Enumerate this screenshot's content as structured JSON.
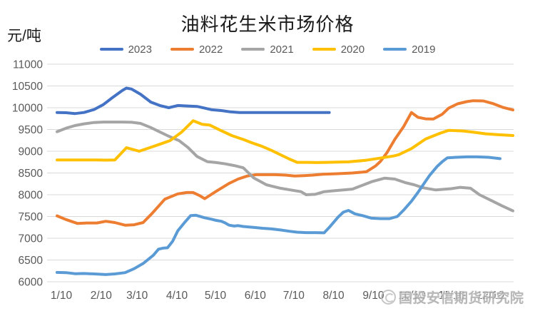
{
  "watermark": {
    "text": "国投安信期货研究院",
    "logo_icon": "circle-logo"
  },
  "colors": {
    "background": "#FFFFFF",
    "grid": "#D9D9D9",
    "axis_text": "#595959",
    "title_text": "#1A1A1A",
    "watermark_text": "#ABABAB",
    "series_2023": "#4472C4",
    "series_2022": "#ED7D31",
    "series_2021": "#A5A5A5",
    "series_2020": "#FFC000",
    "series_2019": "#5B9BD5"
  },
  "chart_data": {
    "type": "line",
    "title": "油料花生米市场价格",
    "ylabel": "元/吨",
    "xlabel": "",
    "ylim": [
      6000,
      11000
    ],
    "grid": "horizontal",
    "legend_position": "top",
    "y_ticks": [
      11000,
      10500,
      10000,
      9500,
      9000,
      8500,
      8000,
      7500,
      7000,
      6500,
      6000
    ],
    "x_tick_days": [
      10,
      41,
      69,
      100,
      130,
      161,
      191,
      222,
      253,
      283,
      314,
      344
    ],
    "x_tick_labels": [
      "1/10",
      "2/10",
      "3/10",
      "4/10",
      "5/10",
      "6/10",
      "7/10",
      "8/10",
      "9/10",
      "10/10",
      "11/10",
      "12/10"
    ],
    "x_unit": "date (month/day), plotted as day-of-year",
    "series": [
      {
        "name": "2023",
        "color": "#4472C4",
        "points": [
          [
            10,
            9890
          ],
          [
            17,
            9885
          ],
          [
            24,
            9865
          ],
          [
            31,
            9890
          ],
          [
            39,
            9960
          ],
          [
            46,
            10070
          ],
          [
            53,
            10230
          ],
          [
            61,
            10400
          ],
          [
            64,
            10450
          ],
          [
            68,
            10430
          ],
          [
            75,
            10310
          ],
          [
            83,
            10130
          ],
          [
            90,
            10050
          ],
          [
            97,
            10000
          ],
          [
            104,
            10050
          ],
          [
            112,
            10040
          ],
          [
            119,
            10030
          ],
          [
            125,
            9990
          ],
          [
            130,
            9955
          ],
          [
            138,
            9935
          ],
          [
            145,
            9905
          ],
          [
            152,
            9890
          ],
          [
            160,
            9890
          ],
          [
            170,
            9890
          ],
          [
            180,
            9890
          ],
          [
            190,
            9890
          ],
          [
            200,
            9890
          ],
          [
            210,
            9890
          ],
          [
            222,
            9890
          ]
        ]
      },
      {
        "name": "2022",
        "color": "#ED7D31",
        "points": [
          [
            10,
            7515
          ],
          [
            17,
            7430
          ],
          [
            26,
            7340
          ],
          [
            33,
            7350
          ],
          [
            41,
            7350
          ],
          [
            48,
            7390
          ],
          [
            55,
            7360
          ],
          [
            63,
            7300
          ],
          [
            70,
            7310
          ],
          [
            77,
            7360
          ],
          [
            84,
            7570
          ],
          [
            94,
            7900
          ],
          [
            104,
            8020
          ],
          [
            111,
            8050
          ],
          [
            116,
            8050
          ],
          [
            121,
            7980
          ],
          [
            125,
            7910
          ],
          [
            134,
            8080
          ],
          [
            144,
            8260
          ],
          [
            151,
            8360
          ],
          [
            158,
            8430
          ],
          [
            165,
            8460
          ],
          [
            173,
            8460
          ],
          [
            180,
            8460
          ],
          [
            188,
            8450
          ],
          [
            195,
            8430
          ],
          [
            202,
            8440
          ],
          [
            209,
            8450
          ],
          [
            217,
            8470
          ],
          [
            225,
            8480
          ],
          [
            233,
            8490
          ],
          [
            240,
            8500
          ],
          [
            248,
            8520
          ],
          [
            251,
            8530
          ],
          [
            258,
            8660
          ],
          [
            262,
            8770
          ],
          [
            267,
            8970
          ],
          [
            273,
            9270
          ],
          [
            280,
            9570
          ],
          [
            286,
            9890
          ],
          [
            291,
            9780
          ],
          [
            297,
            9745
          ],
          [
            303,
            9740
          ],
          [
            310,
            9850
          ],
          [
            315,
            9990
          ],
          [
            322,
            10090
          ],
          [
            329,
            10140
          ],
          [
            334,
            10160
          ],
          [
            342,
            10155
          ],
          [
            349,
            10100
          ],
          [
            357,
            10010
          ],
          [
            365,
            9950
          ]
        ]
      },
      {
        "name": "2021",
        "color": "#A5A5A5",
        "points": [
          [
            10,
            9450
          ],
          [
            17,
            9530
          ],
          [
            24,
            9590
          ],
          [
            31,
            9630
          ],
          [
            39,
            9660
          ],
          [
            46,
            9670
          ],
          [
            53,
            9670
          ],
          [
            61,
            9670
          ],
          [
            68,
            9665
          ],
          [
            75,
            9640
          ],
          [
            83,
            9545
          ],
          [
            90,
            9445
          ],
          [
            97,
            9345
          ],
          [
            105,
            9245
          ],
          [
            112,
            9085
          ],
          [
            119,
            8880
          ],
          [
            127,
            8760
          ],
          [
            134,
            8740
          ],
          [
            141,
            8710
          ],
          [
            148,
            8670
          ],
          [
            155,
            8620
          ],
          [
            163,
            8390
          ],
          [
            173,
            8230
          ],
          [
            184,
            8150
          ],
          [
            192,
            8110
          ],
          [
            200,
            8070
          ],
          [
            204,
            8000
          ],
          [
            211,
            8010
          ],
          [
            218,
            8070
          ],
          [
            225,
            8090
          ],
          [
            233,
            8110
          ],
          [
            240,
            8130
          ],
          [
            248,
            8220
          ],
          [
            255,
            8300
          ],
          [
            265,
            8380
          ],
          [
            273,
            8360
          ],
          [
            281,
            8280
          ],
          [
            288,
            8230
          ],
          [
            295,
            8160
          ],
          [
            305,
            8110
          ],
          [
            317,
            8140
          ],
          [
            324,
            8170
          ],
          [
            332,
            8150
          ],
          [
            339,
            8000
          ],
          [
            348,
            7870
          ],
          [
            357,
            7740
          ],
          [
            365,
            7630
          ]
        ]
      },
      {
        "name": "2020",
        "color": "#FFC000",
        "points": [
          [
            10,
            8800
          ],
          [
            20,
            8800
          ],
          [
            30,
            8800
          ],
          [
            41,
            8800
          ],
          [
            48,
            8795
          ],
          [
            55,
            8800
          ],
          [
            64,
            9080
          ],
          [
            74,
            9000
          ],
          [
            82,
            9080
          ],
          [
            90,
            9160
          ],
          [
            98,
            9245
          ],
          [
            107,
            9440
          ],
          [
            116,
            9700
          ],
          [
            123,
            9620
          ],
          [
            129,
            9600
          ],
          [
            138,
            9470
          ],
          [
            146,
            9360
          ],
          [
            155,
            9270
          ],
          [
            162,
            9190
          ],
          [
            169,
            9120
          ],
          [
            177,
            9020
          ],
          [
            184,
            8920
          ],
          [
            191,
            8820
          ],
          [
            197,
            8745
          ],
          [
            205,
            8745
          ],
          [
            212,
            8740
          ],
          [
            220,
            8745
          ],
          [
            228,
            8750
          ],
          [
            237,
            8755
          ],
          [
            250,
            8790
          ],
          [
            261,
            8840
          ],
          [
            272,
            8890
          ],
          [
            276,
            8920
          ],
          [
            286,
            9060
          ],
          [
            297,
            9280
          ],
          [
            308,
            9410
          ],
          [
            315,
            9480
          ],
          [
            326,
            9465
          ],
          [
            334,
            9440
          ],
          [
            344,
            9400
          ],
          [
            353,
            9380
          ],
          [
            365,
            9360
          ]
        ]
      },
      {
        "name": "2019",
        "color": "#5B9BD5",
        "points": [
          [
            10,
            6215
          ],
          [
            17,
            6210
          ],
          [
            24,
            6185
          ],
          [
            31,
            6190
          ],
          [
            39,
            6180
          ],
          [
            48,
            6165
          ],
          [
            55,
            6180
          ],
          [
            63,
            6210
          ],
          [
            70,
            6300
          ],
          [
            77,
            6420
          ],
          [
            85,
            6610
          ],
          [
            89,
            6750
          ],
          [
            93,
            6775
          ],
          [
            96,
            6780
          ],
          [
            100,
            6930
          ],
          [
            104,
            7170
          ],
          [
            109,
            7350
          ],
          [
            114,
            7520
          ],
          [
            118,
            7530
          ],
          [
            125,
            7470
          ],
          [
            130,
            7440
          ],
          [
            134,
            7410
          ],
          [
            138,
            7390
          ],
          [
            141,
            7350
          ],
          [
            144,
            7300
          ],
          [
            148,
            7280
          ],
          [
            151,
            7290
          ],
          [
            155,
            7270
          ],
          [
            163,
            7250
          ],
          [
            170,
            7230
          ],
          [
            177,
            7215
          ],
          [
            184,
            7190
          ],
          [
            191,
            7160
          ],
          [
            197,
            7140
          ],
          [
            204,
            7130
          ],
          [
            211,
            7130
          ],
          [
            218,
            7125
          ],
          [
            222,
            7250
          ],
          [
            229,
            7490
          ],
          [
            233,
            7600
          ],
          [
            237,
            7640
          ],
          [
            242,
            7560
          ],
          [
            248,
            7520
          ],
          [
            255,
            7460
          ],
          [
            262,
            7450
          ],
          [
            269,
            7450
          ],
          [
            275,
            7500
          ],
          [
            280,
            7650
          ],
          [
            286,
            7850
          ],
          [
            291,
            8050
          ],
          [
            300,
            8440
          ],
          [
            306,
            8650
          ],
          [
            310,
            8760
          ],
          [
            314,
            8850
          ],
          [
            321,
            8860
          ],
          [
            329,
            8870
          ],
          [
            337,
            8870
          ],
          [
            346,
            8860
          ],
          [
            355,
            8830
          ]
        ]
      }
    ]
  }
}
